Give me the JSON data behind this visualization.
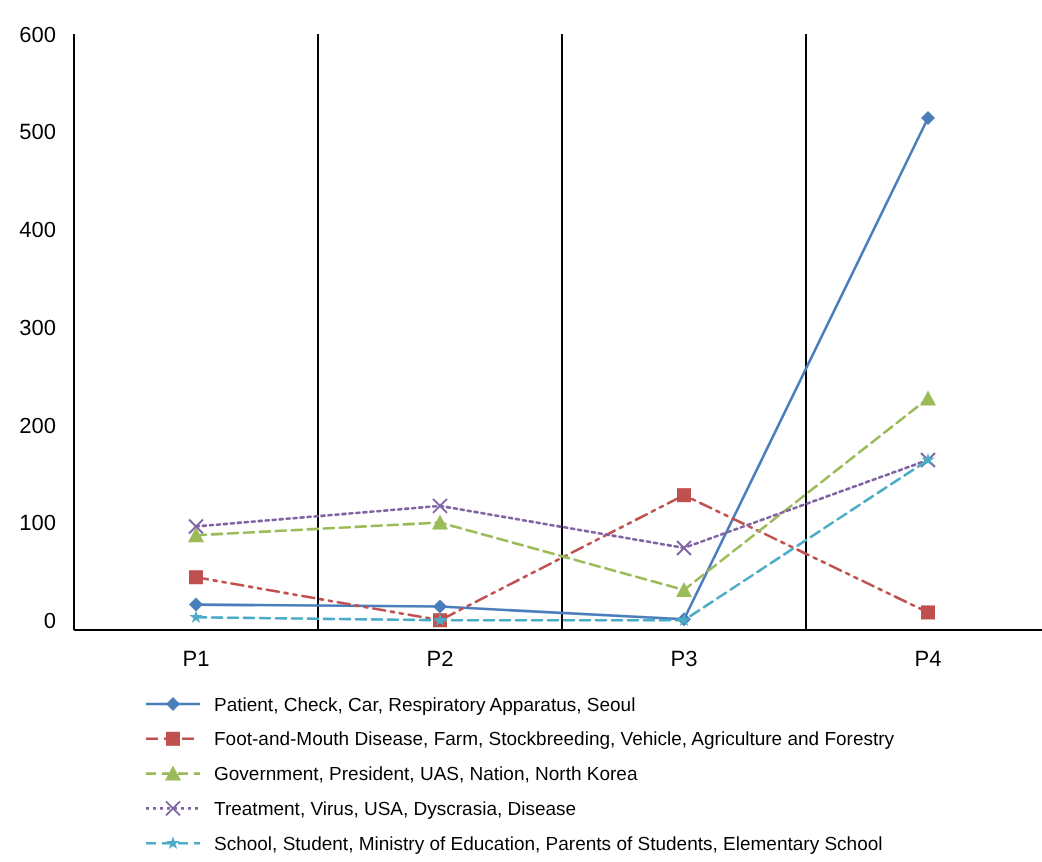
{
  "chart_data": {
    "type": "line",
    "categories": [
      "P1",
      "P2",
      "P3",
      "P4"
    ],
    "series": [
      {
        "name": "Patient, Check, Car, Respiratory Apparatus, Seoul",
        "color": "#4a7ebb",
        "values": [
          16,
          14,
          1,
          514
        ],
        "marker": "diamond",
        "line_style": "solid"
      },
      {
        "name": "Foot-and-Mouth Disease, Farm, Stockbreeding, Vehicle, Agriculture and Forestry",
        "color": "#c0504d",
        "values": [
          44,
          0,
          128,
          8
        ],
        "marker": "square",
        "line_style": "dashdot"
      },
      {
        "name": "Government, President, UAS, Nation, North Korea",
        "color": "#9bbb59",
        "values": [
          87,
          100,
          31,
          227
        ],
        "marker": "triangle",
        "line_style": "dashed"
      },
      {
        "name": "Treatment, Virus, USA, Dyscrasia, Disease",
        "color": "#8064a2",
        "values": [
          96,
          117,
          74,
          164
        ],
        "marker": "cross",
        "line_style": "dotted"
      },
      {
        "name": "School, Student, Ministry of Education, Parents of Students, Elementary School",
        "color": "#4bacc6",
        "values": [
          3,
          0,
          0,
          164
        ],
        "marker": "star",
        "line_style": "dashed"
      }
    ],
    "ylim": [
      -10,
      600
    ],
    "yticks": [
      0,
      100,
      200,
      300,
      400,
      500,
      600
    ],
    "grid": "x",
    "legend": "bottom"
  }
}
